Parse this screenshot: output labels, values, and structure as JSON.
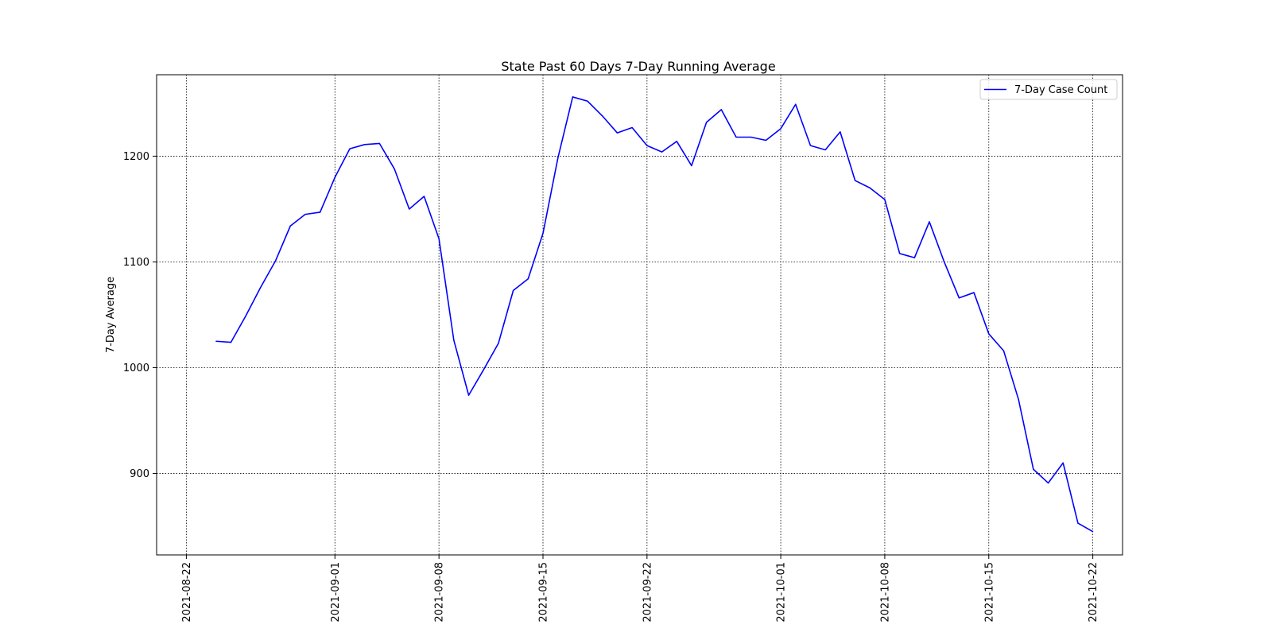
{
  "chart_data": {
    "type": "line",
    "title": "State Past 60 Days 7-Day Running Average",
    "xlabel": "",
    "ylabel": "7-Day Average",
    "xlim": [
      "2021-08-20",
      "2021-10-24"
    ],
    "ylim": [
      823,
      1277
    ],
    "xticks": [
      "2021-08-22",
      "2021-09-01",
      "2021-09-08",
      "2021-09-15",
      "2021-09-22",
      "2021-10-01",
      "2021-10-08",
      "2021-10-15",
      "2021-10-22"
    ],
    "yticks": [
      900,
      1000,
      1100,
      1200
    ],
    "grid": true,
    "grid_style": "dotted",
    "legend": {
      "position": "top-right",
      "entries": [
        "7-Day Case Count"
      ]
    },
    "series": [
      {
        "name": "7-Day Case Count",
        "color": "#0000ff",
        "x": [
          "2021-08-24",
          "2021-08-25",
          "2021-08-26",
          "2021-08-27",
          "2021-08-28",
          "2021-08-29",
          "2021-08-30",
          "2021-08-31",
          "2021-09-01",
          "2021-09-02",
          "2021-09-03",
          "2021-09-04",
          "2021-09-05",
          "2021-09-06",
          "2021-09-07",
          "2021-09-08",
          "2021-09-09",
          "2021-09-10",
          "2021-09-11",
          "2021-09-12",
          "2021-09-13",
          "2021-09-14",
          "2021-09-15",
          "2021-09-16",
          "2021-09-17",
          "2021-09-18",
          "2021-09-19",
          "2021-09-20",
          "2021-09-21",
          "2021-09-22",
          "2021-09-23",
          "2021-09-24",
          "2021-09-25",
          "2021-09-26",
          "2021-09-27",
          "2021-09-28",
          "2021-09-29",
          "2021-09-30",
          "2021-10-01",
          "2021-10-02",
          "2021-10-03",
          "2021-10-04",
          "2021-10-05",
          "2021-10-06",
          "2021-10-07",
          "2021-10-08",
          "2021-10-09",
          "2021-10-10",
          "2021-10-11",
          "2021-10-12",
          "2021-10-13",
          "2021-10-14",
          "2021-10-15",
          "2021-10-16",
          "2021-10-17",
          "2021-10-18",
          "2021-10-19",
          "2021-10-20",
          "2021-10-21",
          "2021-10-22"
        ],
        "values": [
          1025,
          1024,
          1049,
          1076,
          1101,
          1134,
          1145,
          1147,
          1180,
          1207,
          1211,
          1212,
          1188,
          1150,
          1162,
          1122,
          1026,
          974,
          998,
          1023,
          1073,
          1084,
          1127,
          1198,
          1256,
          1252,
          1238,
          1222,
          1227,
          1210,
          1204,
          1214,
          1191,
          1232,
          1244,
          1218,
          1218,
          1215,
          1226,
          1249,
          1210,
          1206,
          1223,
          1177,
          1170,
          1159,
          1108,
          1104,
          1138,
          1100,
          1066,
          1071,
          1032,
          1016,
          970,
          904,
          891,
          910,
          853,
          845
        ]
      }
    ]
  }
}
